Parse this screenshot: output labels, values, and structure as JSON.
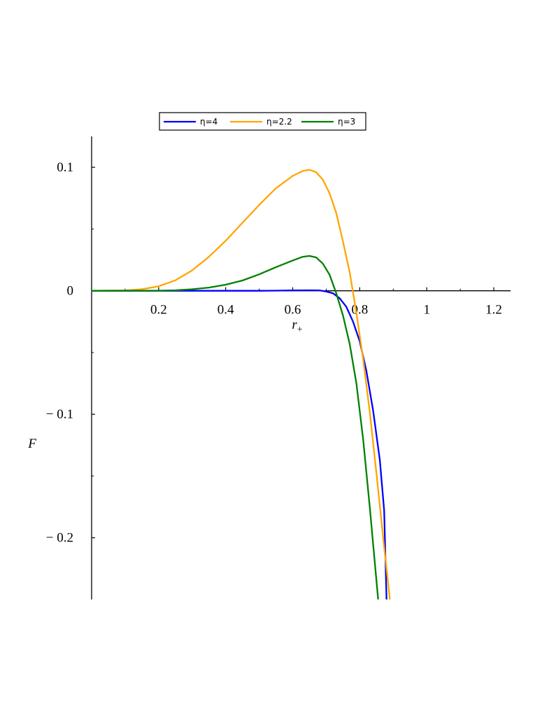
{
  "chart_data": {
    "type": "line",
    "xlabel": "r",
    "xlabel_sub": "+",
    "ylabel": "F",
    "xlim": [
      0.0,
      1.25
    ],
    "ylim": [
      -0.25,
      0.125
    ],
    "x_ticks": [
      {
        "value": 0.2,
        "label": "0.2"
      },
      {
        "value": 0.4,
        "label": "0.4"
      },
      {
        "value": 0.6,
        "label": "0.6"
      },
      {
        "value": 0.8,
        "label": "0.8"
      },
      {
        "value": 1.0,
        "label": "1"
      },
      {
        "value": 1.2,
        "label": "1.2"
      }
    ],
    "y_ticks": [
      {
        "value": 0.1,
        "label": "0.1"
      },
      {
        "value": 0.0,
        "label": "0"
      },
      {
        "value": -0.1,
        "label": "− 0.1"
      },
      {
        "value": -0.2,
        "label": "− 0.2"
      }
    ],
    "y_minor_ticks": [
      0.05,
      -0.05,
      -0.15
    ],
    "grid": false,
    "legend_position": "top-center",
    "series": [
      {
        "name": "η=4",
        "color": "#0000ff",
        "points": [
          [
            0.0,
            0
          ],
          [
            0.1,
            0
          ],
          [
            0.2,
            0
          ],
          [
            0.3,
            0
          ],
          [
            0.4,
            0
          ],
          [
            0.5,
            0
          ],
          [
            0.55,
            0.0001
          ],
          [
            0.6,
            0.0003
          ],
          [
            0.65,
            0.0004
          ],
          [
            0.68,
            0.0003
          ],
          [
            0.7,
            -0.0006
          ],
          [
            0.72,
            -0.002
          ],
          [
            0.74,
            -0.006
          ],
          [
            0.76,
            -0.013
          ],
          [
            0.78,
            -0.025
          ],
          [
            0.8,
            -0.041
          ],
          [
            0.82,
            -0.065
          ],
          [
            0.84,
            -0.097
          ],
          [
            0.86,
            -0.137
          ],
          [
            0.873,
            -0.178
          ],
          [
            0.88,
            -0.25
          ]
        ]
      },
      {
        "name": "η=2.2",
        "color": "#ffa500",
        "points": [
          [
            0.0,
            0
          ],
          [
            0.1,
            0.0003
          ],
          [
            0.15,
            0.0012
          ],
          [
            0.2,
            0.0036
          ],
          [
            0.25,
            0.0085
          ],
          [
            0.3,
            0.0165
          ],
          [
            0.35,
            0.0275
          ],
          [
            0.4,
            0.0405
          ],
          [
            0.45,
            0.055
          ],
          [
            0.5,
            0.0695
          ],
          [
            0.55,
            0.083
          ],
          [
            0.6,
            0.093
          ],
          [
            0.63,
            0.097
          ],
          [
            0.65,
            0.098
          ],
          [
            0.67,
            0.096
          ],
          [
            0.69,
            0.09
          ],
          [
            0.71,
            0.079
          ],
          [
            0.73,
            0.063
          ],
          [
            0.75,
            0.04
          ],
          [
            0.77,
            0.015
          ],
          [
            0.79,
            -0.018
          ],
          [
            0.81,
            -0.055
          ],
          [
            0.83,
            -0.098
          ],
          [
            0.85,
            -0.148
          ],
          [
            0.87,
            -0.2
          ],
          [
            0.89,
            -0.25
          ]
        ]
      },
      {
        "name": "η=3",
        "color": "#008000",
        "points": [
          [
            0.0,
            0
          ],
          [
            0.2,
            0.0001
          ],
          [
            0.25,
            0.0004
          ],
          [
            0.3,
            0.0012
          ],
          [
            0.35,
            0.0026
          ],
          [
            0.4,
            0.0049
          ],
          [
            0.45,
            0.0083
          ],
          [
            0.5,
            0.0133
          ],
          [
            0.55,
            0.0191
          ],
          [
            0.6,
            0.0245
          ],
          [
            0.63,
            0.0275
          ],
          [
            0.65,
            0.0282
          ],
          [
            0.67,
            0.027
          ],
          [
            0.69,
            0.022
          ],
          [
            0.71,
            0.013
          ],
          [
            0.73,
            -0.002
          ],
          [
            0.75,
            -0.02
          ],
          [
            0.77,
            -0.043
          ],
          [
            0.79,
            -0.075
          ],
          [
            0.81,
            -0.12
          ],
          [
            0.83,
            -0.175
          ],
          [
            0.845,
            -0.22
          ],
          [
            0.855,
            -0.25
          ]
        ]
      }
    ]
  }
}
